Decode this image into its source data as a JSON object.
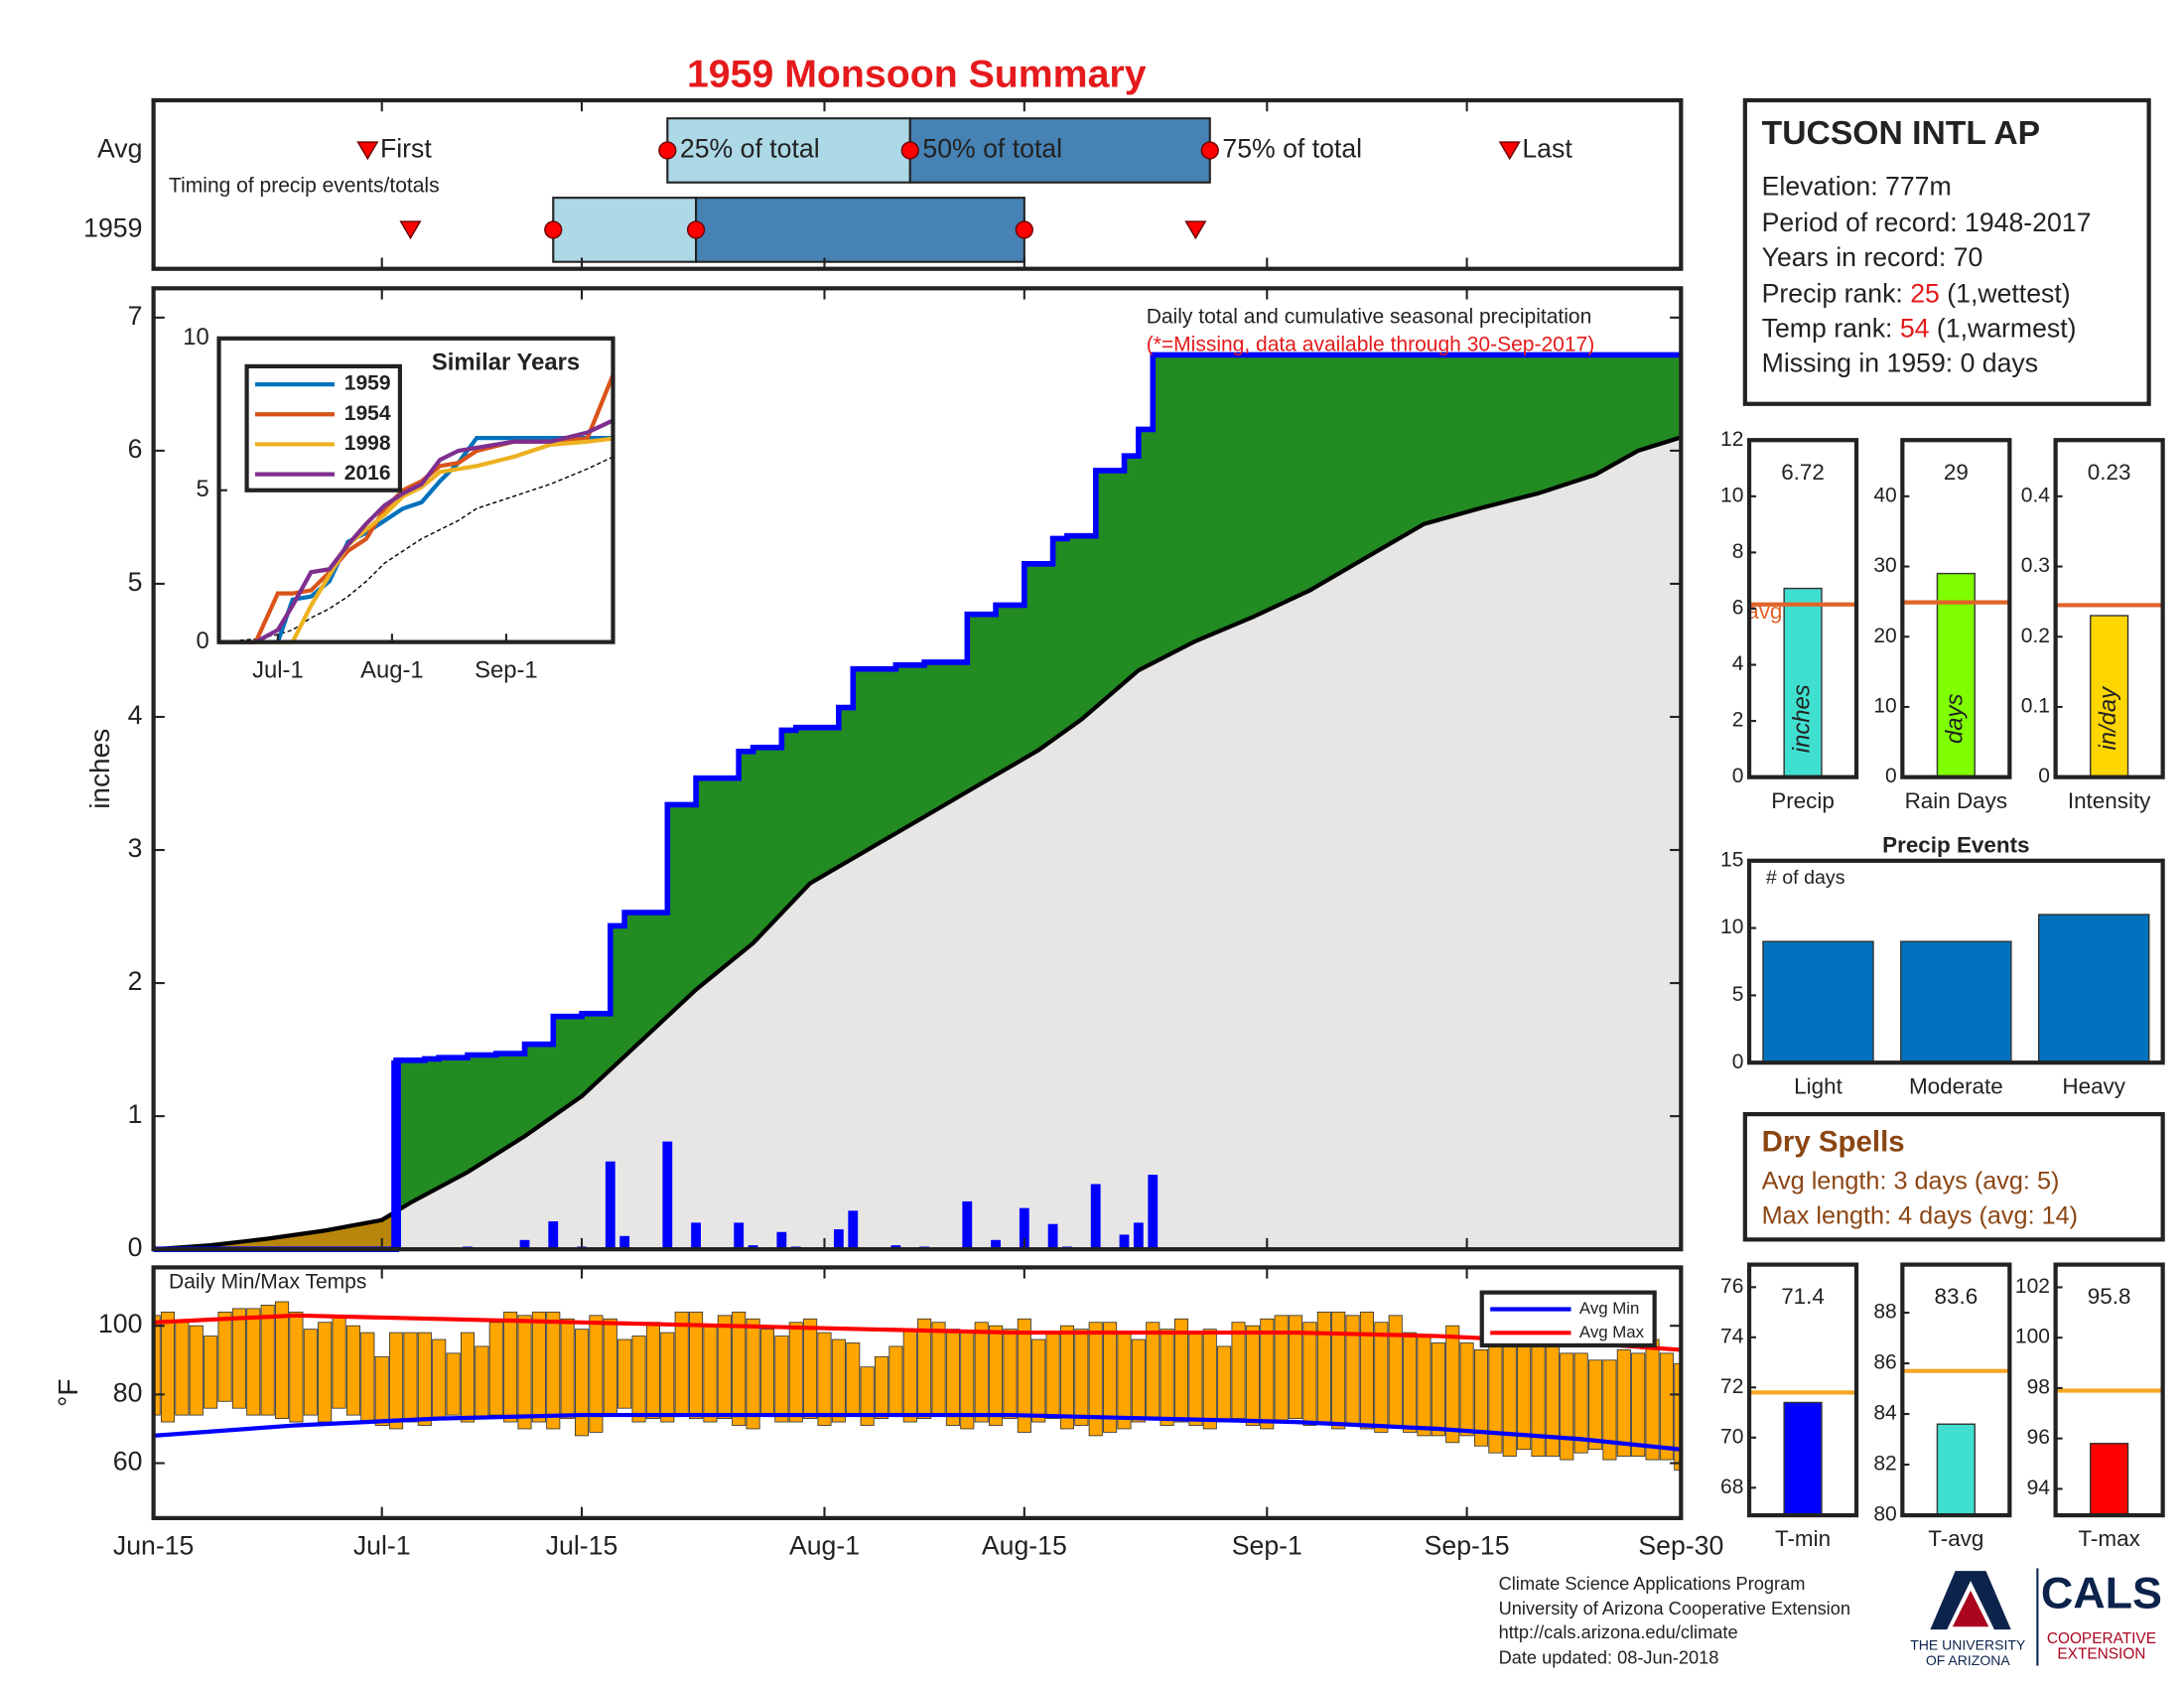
{
  "title": "1959 Monsoon Summary",
  "station": {
    "name": "TUCSON INTL AP",
    "lines": [
      "Elevation: 777m",
      "Period of record: 1948-2017",
      "Years in record: 70"
    ],
    "precip_rank": {
      "label": "Precip rank:",
      "value": 25,
      "note": "(1,wettest)"
    },
    "temp_rank": {
      "label": "Temp rank:",
      "value": 54,
      "note": "(1,warmest)"
    },
    "missing": "Missing in 1959: 0 days"
  },
  "dry_spells": {
    "title": "Dry Spells",
    "lines": [
      "Avg length: 3 days (avg: 5)",
      "Max length: 4 days (avg: 14)"
    ]
  },
  "footer": {
    "lines": [
      "Climate Science Applications Program",
      "University of Arizona Cooperative Extension",
      "http://cals.arizona.edu/climate",
      " Date updated: 08-Jun-2018"
    ],
    "logo_left": [
      "THE UNIVERSITY",
      "OF ARIZONA"
    ],
    "logo_right": "CALS",
    "logo_right_sub": [
      "COOPERATIVE",
      "EXTENSION"
    ]
  },
  "chart_data": [
    {
      "type": "timeline",
      "label": "Timing of precip events/totals",
      "xlim": [
        0,
        107
      ],
      "markers": [
        "First",
        "25% of total",
        "50% of total",
        "75% of total",
        "Last"
      ],
      "box_colors": [
        "#add8e6",
        "#4682b4"
      ],
      "marker_color": "#ff0000",
      "series": [
        {
          "name": "Avg",
          "values": [
            15,
            36,
            53,
            74,
            95
          ]
        },
        {
          "name": "1959",
          "values": [
            18,
            28,
            38,
            61,
            73
          ]
        }
      ]
    },
    {
      "type": "step-area",
      "title": "Daily total and cumulative seasonal precipitation",
      "note": "(*=Missing, data available through 30-Sep-2017)",
      "ylabel": "inches",
      "xlim": [
        0,
        107
      ],
      "ylim": [
        0,
        7.22
      ],
      "yticks": [
        0,
        1,
        2,
        3,
        4,
        5,
        6,
        7
      ],
      "surplus_color": "#228b22",
      "deficit_color": "#b8860b",
      "base_color": "#e8e6e4",
      "daily": {
        "color": "#0000ff",
        "x": [
          17,
          19,
          20,
          22,
          24,
          26,
          28,
          30,
          32,
          33,
          36,
          38,
          41,
          42,
          44,
          45,
          48,
          49,
          52,
          54,
          57,
          59,
          61,
          63,
          64,
          66,
          68,
          69,
          70
        ],
        "values": [
          1.42,
          0.01,
          0.01,
          0.02,
          0.01,
          0.07,
          0.21,
          0.02,
          0.66,
          0.1,
          0.81,
          0.2,
          0.2,
          0.03,
          0.13,
          0.02,
          0.15,
          0.29,
          0.03,
          0.02,
          0.36,
          0.07,
          0.31,
          0.19,
          0.02,
          0.49,
          0.11,
          0.2,
          0.56
        ]
      },
      "average": {
        "color": "#000000",
        "x": [
          0,
          4,
          8,
          12,
          16,
          18,
          22,
          26,
          30,
          34,
          38,
          42,
          46,
          50,
          54,
          58,
          62,
          65,
          69,
          73,
          77,
          81,
          85,
          89,
          93,
          97,
          101,
          104,
          107
        ],
        "values": [
          0,
          0.03,
          0.08,
          0.14,
          0.22,
          0.35,
          0.58,
          0.85,
          1.15,
          1.55,
          1.95,
          2.3,
          2.75,
          3.0,
          3.25,
          3.5,
          3.75,
          3.98,
          4.35,
          4.57,
          4.75,
          4.95,
          5.2,
          5.45,
          5.57,
          5.68,
          5.82,
          6.0,
          6.1
        ]
      }
    },
    {
      "type": "line",
      "title": "Similar Years",
      "xlim": [
        0,
        107
      ],
      "ylim": [
        0,
        10
      ],
      "yticks": [
        0,
        5,
        10
      ],
      "xticks": [
        {
          "value": 16,
          "label": "Jul-1"
        },
        {
          "value": 47,
          "label": "Aug-1"
        },
        {
          "value": 78,
          "label": "Sep-1"
        }
      ],
      "x": [
        0,
        10,
        16,
        20,
        25,
        30,
        35,
        40,
        45,
        50,
        55,
        60,
        65,
        70,
        80,
        90,
        100,
        107
      ],
      "average": {
        "color": "#000000",
        "values": [
          0,
          0.1,
          0.25,
          0.4,
          0.8,
          1.1,
          1.5,
          2.0,
          2.6,
          3.0,
          3.4,
          3.7,
          4.0,
          4.4,
          4.8,
          5.2,
          5.7,
          6.1
        ]
      },
      "series": [
        {
          "name": "1959",
          "color": "#0072bd",
          "values": [
            0,
            0,
            0,
            1.4,
            1.5,
            2.0,
            3.3,
            3.6,
            4.0,
            4.4,
            4.6,
            5.3,
            5.9,
            6.72,
            6.72,
            6.72,
            6.72,
            6.72
          ]
        },
        {
          "name": "1954",
          "color": "#d95319",
          "values": [
            0,
            0,
            1.6,
            1.6,
            1.7,
            2.3,
            3.0,
            3.4,
            4.4,
            5.0,
            5.3,
            5.8,
            5.9,
            6.3,
            6.6,
            6.6,
            6.7,
            8.8
          ]
        },
        {
          "name": "1998",
          "color": "#edb120",
          "values": [
            0,
            0,
            0,
            0,
            1.2,
            2.2,
            3.2,
            3.7,
            4.2,
            4.8,
            5.1,
            5.6,
            5.7,
            5.8,
            6.1,
            6.5,
            6.6,
            6.7
          ]
        },
        {
          "name": "2016",
          "color": "#7e2f8e",
          "values": [
            0,
            0,
            0.4,
            1.2,
            2.3,
            2.4,
            3.2,
            3.9,
            4.5,
            4.9,
            5.2,
            6.0,
            6.3,
            6.4,
            6.6,
            6.6,
            6.9,
            7.3
          ]
        }
      ]
    },
    {
      "type": "range-bar",
      "title": "Daily Min/Max Temps",
      "ylabel": "°F",
      "xlim": [
        0,
        107
      ],
      "ylim": [
        44,
        117
      ],
      "yticks": [
        60,
        80,
        100
      ],
      "color": "#ffa500",
      "xticks": [
        {
          "value": 0,
          "label": "Jun-15"
        },
        {
          "value": 16,
          "label": "Jul-1"
        },
        {
          "value": 30,
          "label": "Jul-15"
        },
        {
          "value": 47,
          "label": "Aug-1"
        },
        {
          "value": 61,
          "label": "Aug-15"
        },
        {
          "value": 78,
          "label": "Sep-1"
        },
        {
          "value": 92,
          "label": "Sep-15"
        },
        {
          "value": 107,
          "label": "Sep-30"
        }
      ],
      "x": [
        0,
        1,
        2,
        3,
        4,
        5,
        6,
        7,
        8,
        9,
        10,
        11,
        12,
        13,
        14,
        15,
        16,
        17,
        18,
        19,
        20,
        21,
        22,
        23,
        24,
        25,
        26,
        27,
        28,
        29,
        30,
        31,
        32,
        33,
        34,
        35,
        36,
        37,
        38,
        39,
        40,
        41,
        42,
        43,
        44,
        45,
        46,
        47,
        48,
        49,
        50,
        51,
        52,
        53,
        54,
        55,
        56,
        57,
        58,
        59,
        60,
        61,
        62,
        63,
        64,
        65,
        66,
        67,
        68,
        69,
        70,
        71,
        72,
        73,
        74,
        75,
        76,
        77,
        78,
        79,
        80,
        81,
        82,
        83,
        84,
        85,
        86,
        87,
        88,
        89,
        90,
        91,
        92,
        93,
        94,
        95,
        96,
        97,
        98,
        99,
        100,
        101,
        102,
        103,
        104,
        105,
        106,
        107
      ],
      "max": [
        103,
        104,
        101,
        100,
        97,
        104,
        105,
        105,
        106,
        107,
        104,
        99,
        101,
        103,
        100,
        98,
        91,
        98,
        98,
        98,
        96,
        92,
        98,
        94,
        101,
        104,
        103,
        104,
        104,
        102,
        99,
        103,
        102,
        96,
        97,
        101,
        98,
        104,
        104,
        100,
        103,
        104,
        102,
        99,
        97,
        101,
        102,
        98,
        96,
        95,
        88,
        91,
        94,
        99,
        102,
        101,
        99,
        98,
        101,
        100,
        99,
        102,
        96,
        98,
        100,
        99,
        101,
        101,
        98,
        96,
        101,
        99,
        102,
        98,
        99,
        94,
        101,
        100,
        102,
        103,
        103,
        101,
        104,
        104,
        103,
        104,
        101,
        103,
        98,
        97,
        95,
        100,
        95,
        93,
        98,
        99,
        97,
        95,
        95,
        92,
        92,
        90,
        90,
        93,
        92,
        96,
        92,
        89
      ],
      "min": [
        74,
        72,
        74,
        74,
        76,
        78,
        76,
        74,
        74,
        73,
        72,
        74,
        72,
        76,
        74,
        72,
        71,
        70,
        72,
        71,
        73,
        74,
        72,
        73,
        74,
        72,
        70,
        72,
        70,
        73,
        68,
        69,
        74,
        76,
        72,
        73,
        72,
        74,
        73,
        72,
        73,
        71,
        70,
        74,
        72,
        72,
        73,
        71,
        72,
        74,
        71,
        73,
        74,
        72,
        73,
        74,
        71,
        70,
        72,
        71,
        73,
        69,
        72,
        73,
        70,
        71,
        68,
        69,
        70,
        72,
        73,
        71,
        72,
        71,
        70,
        72,
        73,
        71,
        70,
        72,
        73,
        71,
        72,
        70,
        71,
        70,
        69,
        71,
        69,
        68,
        68,
        66,
        68,
        65,
        63,
        62,
        64,
        62,
        62,
        61,
        63,
        64,
        61,
        62,
        62,
        61,
        61,
        58
      ],
      "series": [
        {
          "name": "Avg Min",
          "color": "#0000ff",
          "x": [
            0,
            10,
            20,
            30,
            40,
            50,
            60,
            70,
            80,
            90,
            100,
            107
          ],
          "values": [
            68,
            71,
            73,
            74,
            74,
            74,
            74,
            73,
            72,
            70,
            67,
            64
          ]
        },
        {
          "name": "Avg Max",
          "color": "#ff0000",
          "x": [
            0,
            10,
            20,
            30,
            40,
            50,
            60,
            70,
            80,
            90,
            100,
            107
          ],
          "values": [
            101,
            103,
            102,
            101,
            100,
            99,
            98,
            98,
            98,
            97,
            95,
            93
          ]
        }
      ]
    },
    {
      "type": "bar",
      "categories": [
        "Precip"
      ],
      "values": [
        6.72
      ],
      "unit_label": "inches",
      "avg": 6.15,
      "avg_label": "avg",
      "avg_color": "#e0642a",
      "color": "#40e0d0",
      "ylim": [
        0,
        12
      ],
      "yticks": [
        0,
        2,
        4,
        6,
        8,
        10,
        12
      ]
    },
    {
      "type": "bar",
      "categories": [
        "Rain Days"
      ],
      "values": [
        29
      ],
      "unit_label": "days",
      "avg": 24.9,
      "avg_color": "#e0642a",
      "color": "#7fff00",
      "ylim": [
        0,
        48
      ],
      "yticks": [
        0,
        10,
        20,
        30,
        40
      ]
    },
    {
      "type": "bar",
      "categories": [
        "Intensity"
      ],
      "values": [
        0.23
      ],
      "unit_label": "in/day",
      "avg": 0.245,
      "avg_color": "#e0642a",
      "color": "#ffd700",
      "ylim": [
        0,
        0.48
      ],
      "yticks": [
        0,
        0.1,
        0.2,
        0.3,
        0.4
      ]
    },
    {
      "type": "bar",
      "title": "Precip Events",
      "ylabel": "# of days",
      "categories": [
        "Light",
        "Moderate",
        "Heavy"
      ],
      "values": [
        9,
        9,
        11
      ],
      "color": "#0072bd",
      "ylim": [
        0,
        15
      ],
      "yticks": [
        0,
        5,
        10,
        15
      ]
    },
    {
      "type": "bar",
      "categories": [
        "T-min"
      ],
      "values": [
        71.4
      ],
      "avg": 71.8,
      "avg_color": "#f5a623",
      "color": "#0000ff",
      "ylim": [
        66.9,
        76.9
      ],
      "yticks": [
        68,
        70,
        72,
        74,
        76
      ]
    },
    {
      "type": "bar",
      "categories": [
        "T-avg"
      ],
      "values": [
        83.6
      ],
      "avg": 85.7,
      "avg_color": "#f5a623",
      "color": "#40e0d0",
      "ylim": [
        80,
        89.9
      ],
      "yticks": [
        80,
        82,
        84,
        86,
        88
      ]
    },
    {
      "type": "bar",
      "categories": [
        "T-max"
      ],
      "values": [
        95.8
      ],
      "avg": 97.9,
      "avg_color": "#f5a623",
      "color": "#ff0000",
      "ylim": [
        92.95,
        102.9
      ],
      "yticks": [
        94,
        96,
        98,
        100,
        102
      ]
    }
  ]
}
